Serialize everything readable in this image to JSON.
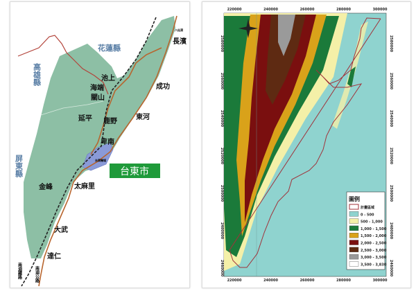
{
  "left_map": {
    "counties": {
      "hualien": "花蓮縣",
      "kaohsiung": "高雄縣",
      "pingtung": "屏東縣"
    },
    "towns": [
      {
        "id": "changbin",
        "label": "長濱"
      },
      {
        "id": "chenggong",
        "label": "成功"
      },
      {
        "id": "chishang",
        "label": "池上"
      },
      {
        "id": "haiduan",
        "label": "海端"
      },
      {
        "id": "guanshan",
        "label": "關山"
      },
      {
        "id": "yanping",
        "label": "延平"
      },
      {
        "id": "luye",
        "label": "鹿野"
      },
      {
        "id": "donghe",
        "label": "東河"
      },
      {
        "id": "beinan",
        "label": "卑南"
      },
      {
        "id": "jinfeng",
        "label": "金峰"
      },
      {
        "id": "taimali",
        "label": "太麻里"
      },
      {
        "id": "dawu",
        "label": "大武"
      },
      {
        "id": "daren",
        "label": "達仁"
      }
    ],
    "city_label": "台東市",
    "airport_label": "台東機場",
    "small_label": "八仙洞",
    "railway_label": "南迴鐵路",
    "highway_label": "南迴公路",
    "colors": {
      "land": "#8dbfa5",
      "city": "#8a9ad8",
      "road": "#b8652e",
      "border": "#b3433a",
      "city_box": "#1f9a3a"
    }
  },
  "right_map": {
    "x_ticks": [
      "220000",
      "240000",
      "260000",
      "280000",
      "300000"
    ],
    "y_ticks": [
      "2580000",
      "2560000",
      "2540000",
      "2520000",
      "2500000",
      "2480000",
      "2460000"
    ],
    "legend": {
      "title": "圖例",
      "items": [
        {
          "label": "計畫區域",
          "color": "#ffffff",
          "outline": "#a0323a"
        },
        {
          "label": "0 - 500",
          "color": "#8fd3cf"
        },
        {
          "label": "500 - 1,000",
          "color": "#f4f0a8"
        },
        {
          "label": "1,000 - 1,500",
          "color": "#1b7a3a"
        },
        {
          "label": "1,500 - 2,000",
          "color": "#d9a21a"
        },
        {
          "label": "2,000 - 2,500",
          "color": "#7a0f0f"
        },
        {
          "label": "2,500 - 3,000",
          "color": "#5e2a12"
        },
        {
          "label": "3,000 - 3,500",
          "color": "#9a9a9a"
        },
        {
          "label": "3,500 - 3,830",
          "color": "#ffffff"
        }
      ]
    }
  }
}
